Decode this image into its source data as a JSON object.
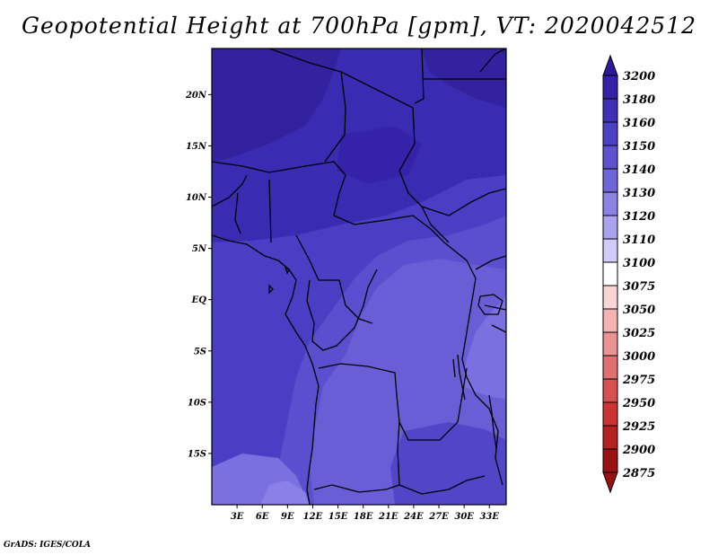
{
  "title": "Geopotential Height at 700hPa [gpm], VT: 2020042512",
  "footer": "GrADS: IGES/COLA",
  "map": {
    "lon_ticks": [
      "3E",
      "6E",
      "9E",
      "12E",
      "15E",
      "18E",
      "21E",
      "24E",
      "27E",
      "30E",
      "33E"
    ],
    "lat_ticks": [
      "20N",
      "15N",
      "10N",
      "5N",
      "EQ",
      "5S",
      "10S",
      "15S"
    ],
    "lon_range": [
      0,
      35
    ],
    "lat_range": [
      -20,
      24.5
    ]
  },
  "colorbar": {
    "levels": [
      "3200",
      "3180",
      "3160",
      "3150",
      "3140",
      "3130",
      "3120",
      "3110",
      "3100",
      "3075",
      "3050",
      "3025",
      "3000",
      "2975",
      "2950",
      "2925",
      "2900",
      "2875"
    ],
    "colors": [
      "#2e1a99",
      "#3423a8",
      "#3e31b8",
      "#4c40c4",
      "#5d52cf",
      "#6f66d9",
      "#8a82e4",
      "#aaa4ee",
      "#d0ccf7",
      "#ffffff",
      "#fad5d5",
      "#f5b4b4",
      "#eb9393",
      "#e07070",
      "#d65050",
      "#cc3333",
      "#b52020",
      "#9a1111"
    ]
  },
  "field_colors": {
    "very_high": "#33229f",
    "high": "#3c2fb6",
    "mid_high": "#4637c1",
    "mid": "#5145c8",
    "mid_low": "#6a5ed6",
    "low": "#7b70e0",
    "lowest": "#8a80e8"
  }
}
